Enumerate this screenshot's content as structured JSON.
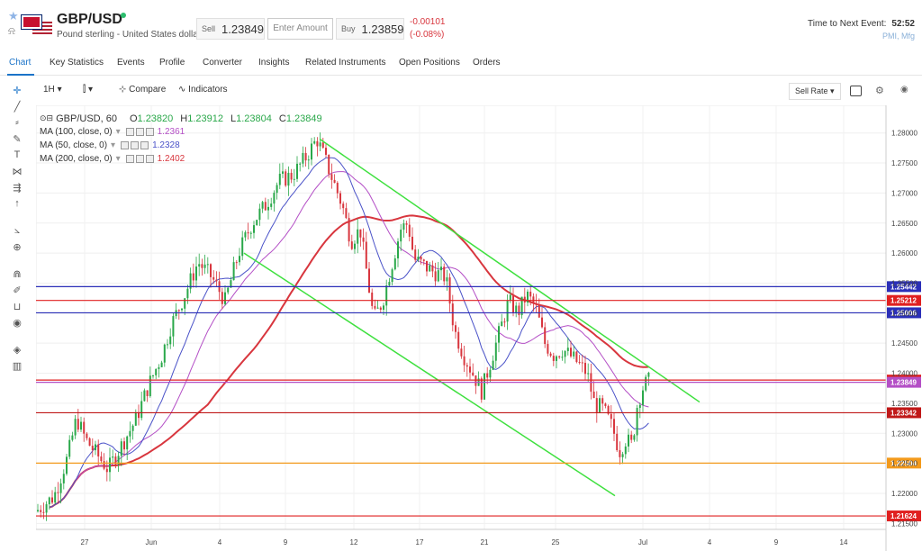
{
  "header": {
    "symbol": "GBP/USD",
    "description": "Pound sterling - United States dollar",
    "sell_label": "Sell",
    "sell_price": "1.23849",
    "amount_placeholder": "Enter Amount",
    "buy_label": "Buy",
    "buy_price": "1.23859",
    "change_abs": "-0.00101",
    "change_pct": "(-0.08%)",
    "next_event_label": "Time to Next Event:",
    "next_event_time": "52:52",
    "next_event_name": "PMI, Mfg"
  },
  "tabs": [
    "Chart",
    "Key Statistics",
    "Events",
    "Profile",
    "Converter",
    "Insights",
    "Related Instruments",
    "Open Positions",
    "Orders"
  ],
  "toolbar": {
    "interval": "1H",
    "compare_label": "Compare",
    "indicators_label": "Indicators",
    "price_type": "Sell Rate"
  },
  "legend": {
    "main": "GBP/USD, 60",
    "o_label": "O",
    "o": "1.23820",
    "h_label": "H",
    "h": "1.23912",
    "l_label": "L",
    "l": "1.23804",
    "c_label": "C",
    "c": "1.23849",
    "ma": [
      {
        "label": "MA (100, close, 0)",
        "value": "1.2361",
        "color": "#b44fc6"
      },
      {
        "label": "MA (50, close, 0)",
        "value": "1.2328",
        "color": "#4a52c8"
      },
      {
        "label": "MA (200, close, 0)",
        "value": "1.2402",
        "color": "#d8363e"
      }
    ]
  },
  "chart_data": {
    "type": "candlestick",
    "y_ticks": [
      "1.28000",
      "1.27500",
      "1.27000",
      "1.26500",
      "1.26000",
      "1.25500",
      "1.25000",
      "1.24500",
      "1.24000",
      "1.23500",
      "1.23000",
      "1.22500",
      "1.22000",
      "1.21500"
    ],
    "x_ticks": [
      "27",
      "Jun",
      "4",
      "9",
      "12",
      "17",
      "21",
      "25",
      "Jul",
      "4",
      "9",
      "14"
    ],
    "horizontal_levels": [
      {
        "value": "1.25442",
        "color": "#2b2fb8"
      },
      {
        "value": "1.25212",
        "color": "#e02020"
      },
      {
        "value": "1.25006",
        "color": "#2b2fb8"
      },
      {
        "value": "1.23886",
        "color": "#e02020"
      },
      {
        "value": "1.23849",
        "color": "#b44fc6"
      },
      {
        "value": "1.23342",
        "color": "#c01818"
      },
      {
        "value": "1.22504",
        "color": "#f39a1b"
      },
      {
        "value": "1.21624",
        "color": "#e02020"
      }
    ],
    "channel_color": "#3fe03f",
    "ma_colors": {
      "ma50": "#4a52c8",
      "ma100": "#b44fc6",
      "ma200": "#d8363e"
    },
    "up_color": "#2aa84a",
    "down_color": "#d8363e"
  }
}
